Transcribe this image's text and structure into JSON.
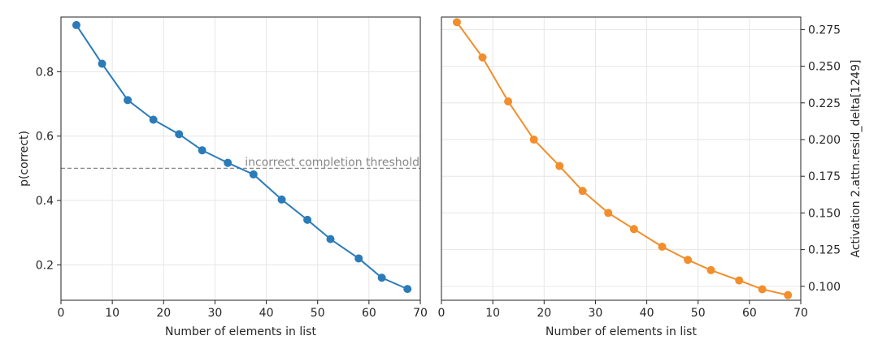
{
  "chart_data": [
    {
      "type": "line",
      "title": "",
      "xlabel": "Number of elements in list",
      "ylabel": "p(correct)",
      "xlim": [
        0,
        70
      ],
      "ylim": [
        0.09,
        0.97
      ],
      "xticks": [
        0,
        10,
        20,
        30,
        40,
        50,
        60,
        70
      ],
      "yticks": [
        0.2,
        0.4,
        0.6,
        0.8
      ],
      "ytick_labels": [
        "0.2",
        "0.4",
        "0.6",
        "0.8"
      ],
      "yaxis_side": "left",
      "grid": true,
      "color": "#2b7bb9",
      "x": [
        3,
        8,
        13,
        18,
        23,
        27.5,
        32.5,
        37.5,
        43,
        48,
        52.5,
        58,
        62.5,
        67.5
      ],
      "series": [
        {
          "values": [
            0.945,
            0.825,
            0.712,
            0.651,
            0.606,
            0.556,
            0.517,
            0.481,
            0.403,
            0.34,
            0.28,
            0.22,
            0.16,
            0.125
          ]
        }
      ],
      "hline": {
        "y": 0.5,
        "style": "dashed",
        "color": "#888888",
        "label": "incorrect completion threshold"
      }
    },
    {
      "type": "line",
      "title": "",
      "xlabel": "Number of elements in list",
      "ylabel": "Activation 2.attn.resid_delta[1249]",
      "xlim": [
        0,
        70
      ],
      "ylim": [
        0.0905,
        0.2835
      ],
      "xticks": [
        0,
        10,
        20,
        30,
        40,
        50,
        60,
        70
      ],
      "yticks": [
        0.1,
        0.125,
        0.15,
        0.175,
        0.2,
        0.225,
        0.25,
        0.275
      ],
      "ytick_labels": [
        "0.100",
        "0.125",
        "0.150",
        "0.175",
        "0.200",
        "0.225",
        "0.250",
        "0.275"
      ],
      "yaxis_side": "right",
      "grid": true,
      "color": "#f28e2b",
      "x": [
        3,
        8,
        13,
        18,
        23,
        27.5,
        32.5,
        37.5,
        43,
        48,
        52.5,
        58,
        62.5,
        67.5
      ],
      "series": [
        {
          "values": [
            0.28,
            0.256,
            0.226,
            0.2,
            0.182,
            0.165,
            0.15,
            0.139,
            0.127,
            0.118,
            0.111,
            0.104,
            0.098,
            0.094
          ]
        }
      ]
    }
  ]
}
